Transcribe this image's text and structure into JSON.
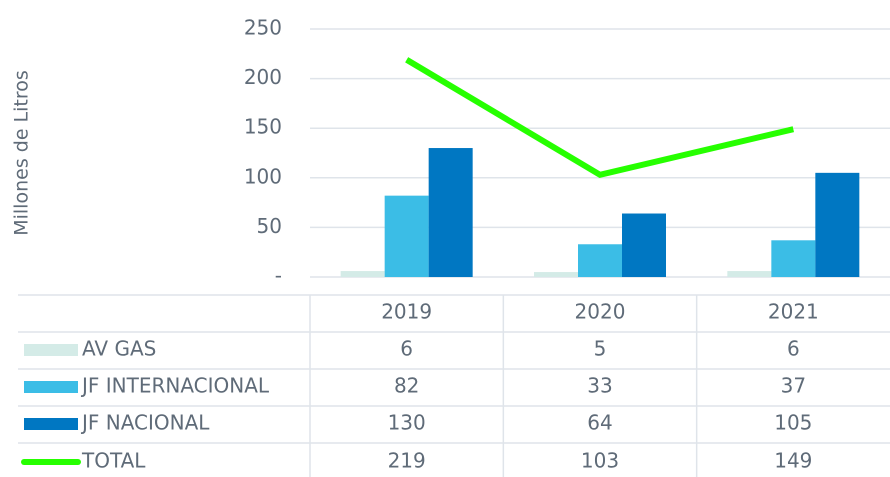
{
  "chart_data": {
    "type": "bar",
    "y_label": "Millones de Litros",
    "categories": [
      "2019",
      "2020",
      "2021"
    ],
    "series": [
      {
        "name": "AV GAS",
        "color": "#d4ebe7",
        "values": [
          6,
          5,
          6
        ]
      },
      {
        "name": "JF INTERNACIONAL",
        "color": "#3bbde6",
        "values": [
          82,
          33,
          37
        ]
      },
      {
        "name": "JF NACIONAL",
        "color": "#0077c2",
        "values": [
          130,
          64,
          105
        ]
      },
      {
        "name": "TOTAL",
        "color": "#26ff00",
        "type": "line",
        "values": [
          219,
          103,
          149
        ]
      }
    ],
    "ylim": [
      0,
      250
    ],
    "yticks": [
      {
        "value": 0,
        "label": "-"
      },
      50,
      100,
      150,
      200,
      250
    ],
    "grid": true
  }
}
